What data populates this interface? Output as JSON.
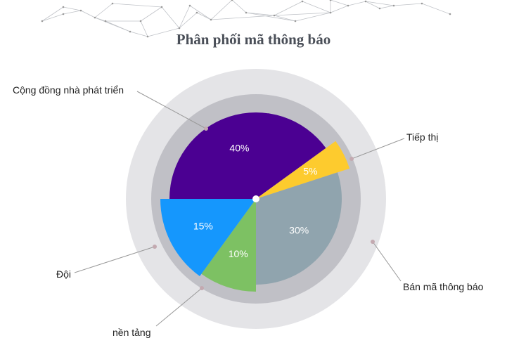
{
  "chart_data": {
    "type": "pie",
    "title": "Phân phối mã thông báo",
    "slices": [
      {
        "label": "Cộng đồng nhà phát triển",
        "value": 40,
        "value_label": "40%",
        "color": "#4b0092"
      },
      {
        "label": "Tiếp thị",
        "value": 5,
        "value_label": "5%",
        "color": "#fdcb2e"
      },
      {
        "label": "Bán mã thông báo",
        "value": 30,
        "value_label": "30%",
        "color": "#90a4ae"
      },
      {
        "label": "nền tảng",
        "value": 10,
        "value_label": "10%",
        "color": "#7dc163"
      },
      {
        "label": "Đội",
        "value": 15,
        "value_label": "15%",
        "color": "#1597fd"
      }
    ],
    "ring_colors": {
      "outer": "#e4e4e7",
      "inner": "#c0c0c6"
    },
    "legend": "leader-line labels"
  }
}
